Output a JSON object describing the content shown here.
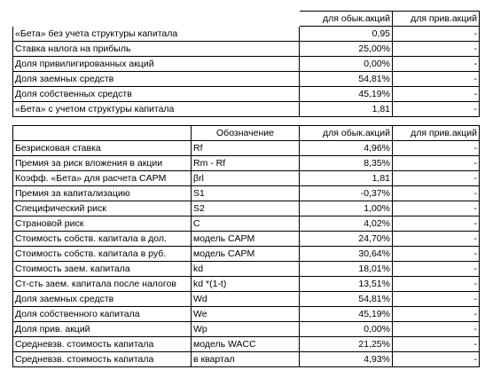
{
  "table1": {
    "headers": [
      "",
      "",
      "для обык.акций",
      "для прив.акций"
    ],
    "rows": [
      {
        "label": "«Бета» без учета структуры капитала",
        "ordinary": "0,95",
        "preferred": "-"
      },
      {
        "label": "Ставка налога на прибыль",
        "ordinary": "25,00%",
        "preferred": "-"
      },
      {
        "label": "Доля привилигированных акций",
        "ordinary": "0,00%",
        "preferred": "-"
      },
      {
        "label": "Доля заемных средств",
        "ordinary": "54,81%",
        "preferred": "-"
      },
      {
        "label": "Доля собственных средств",
        "ordinary": "45,19%",
        "preferred": "-"
      },
      {
        "label": "«Бета» с учетом структуры капитала",
        "ordinary": "1,81",
        "preferred": "-"
      }
    ]
  },
  "table2": {
    "headers": [
      "",
      "Обозначение",
      "для обык.акций",
      "для прив.акций"
    ],
    "rows": [
      {
        "label": "Безрисковая ставка",
        "symbol": "Rf",
        "ordinary": "4,96%",
        "preferred": "-"
      },
      {
        "label": "Премия за риск вложения в акции",
        "symbol": "Rm - Rf",
        "ordinary": "8,35%",
        "preferred": "-"
      },
      {
        "label": "Коэфф. «Бета» для расчета CAPM",
        "symbol": "βrl",
        "ordinary": "1,81",
        "preferred": "-"
      },
      {
        "label": "Премия за капитализацию",
        "symbol": "S1",
        "ordinary": "-0,37%",
        "preferred": "-"
      },
      {
        "label": "Специфический риск",
        "symbol": "S2",
        "ordinary": "1,00%",
        "preferred": "-"
      },
      {
        "label": "Страновой риск",
        "symbol": "C",
        "ordinary": "4,02%",
        "preferred": "-"
      },
      {
        "label": "Стоимость собств. капитала в дол.",
        "symbol": "модель CAPM",
        "ordinary": "24,70%",
        "preferred": "-"
      },
      {
        "label": "Стоимость собств. капитала в руб.",
        "symbol": "модель CAPM",
        "ordinary": "30,64%",
        "preferred": "-"
      },
      {
        "label": "Стоимость заем. капитала",
        "symbol": "kd",
        "ordinary": "18,01%",
        "preferred": "-"
      },
      {
        "label": "Ст-сть заем. капитала после налогов",
        "symbol": "kd *(1-t)",
        "ordinary": "13,51%",
        "preferred": "-"
      },
      {
        "label": "Доля заемных средств",
        "symbol": "Wd",
        "ordinary": "54,81%",
        "preferred": "-"
      },
      {
        "label": "Доля собственного капитала",
        "symbol": "We",
        "ordinary": "45,19%",
        "preferred": "-"
      },
      {
        "label": "Доля прив. акций",
        "symbol": "Wp",
        "ordinary": "0,00%",
        "preferred": "-"
      },
      {
        "label": "Средневзв. стоимость капитала",
        "symbol": "модель WACC",
        "ordinary": "21,25%",
        "preferred": "-"
      },
      {
        "label": "Средневзв. стоимость капитала",
        "symbol": "в квартал",
        "ordinary": "4,93%",
        "preferred": "-"
      }
    ]
  }
}
